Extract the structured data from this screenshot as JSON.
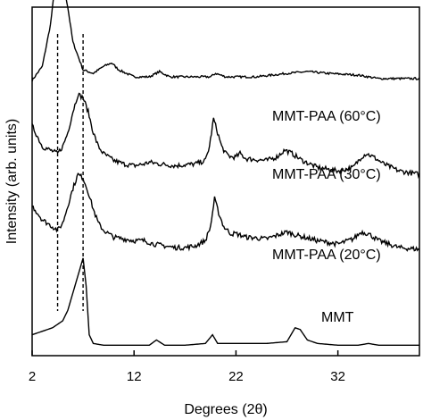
{
  "chart_data": {
    "type": "line",
    "title": "",
    "xlabel": "Degrees (2θ)",
    "ylabel": "Intensity (arb. units)",
    "xlim": [
      2,
      40
    ],
    "x_ticks": [
      2,
      12,
      22,
      32
    ],
    "y_ticks_shown": false,
    "grid": false,
    "legend": "none",
    "line_color": "#000000",
    "reference_lines": [
      {
        "x": 4.5,
        "style": "dashed"
      },
      {
        "x": 7.0,
        "style": "dashed"
      }
    ],
    "series": [
      {
        "name": "MMT-PAA (60°C)",
        "baseline": 0.79,
        "x": [
          2.0,
          3.0,
          3.8,
          4.2,
          4.6,
          5.0,
          5.5,
          6.0,
          7.0,
          8.0,
          9.0,
          9.8,
          10.5,
          12.0,
          13.5,
          14.5,
          15.5,
          17.0,
          18.5,
          19.5,
          20.0,
          21.0,
          24.0,
          27.0,
          29.0,
          31.0,
          34.0,
          36.0,
          40.0
        ],
        "values": [
          0.79,
          0.83,
          0.95,
          1.05,
          1.09,
          1.08,
          1.0,
          0.9,
          0.82,
          0.81,
          0.83,
          0.84,
          0.82,
          0.8,
          0.8,
          0.815,
          0.8,
          0.8,
          0.8,
          0.8,
          0.81,
          0.8,
          0.8,
          0.81,
          0.815,
          0.81,
          0.805,
          0.795,
          0.795
        ],
        "noise": 0.003
      },
      {
        "name": "MMT-PAA (30°C)",
        "baseline": 0.52,
        "x": [
          2.0,
          3.0,
          4.5,
          5.0,
          5.5,
          6.0,
          6.5,
          7.0,
          7.5,
          8.0,
          8.5,
          9.0,
          9.5,
          10.0,
          11.0,
          12.0,
          13.0,
          13.5,
          14.5,
          16.0,
          18.0,
          19.0,
          19.4,
          19.8,
          20.1,
          20.6,
          21.0,
          21.5,
          22.0,
          22.4,
          23.0,
          25.0,
          26.0,
          26.8,
          27.5,
          28.5,
          30.0,
          32.0,
          33.5,
          34.3,
          34.8,
          35.5,
          36.5,
          38.0,
          40.0
        ],
        "values": [
          0.66,
          0.6,
          0.58,
          0.6,
          0.64,
          0.7,
          0.75,
          0.74,
          0.7,
          0.64,
          0.6,
          0.58,
          0.57,
          0.56,
          0.55,
          0.545,
          0.55,
          0.555,
          0.55,
          0.545,
          0.55,
          0.56,
          0.6,
          0.68,
          0.65,
          0.6,
          0.58,
          0.57,
          0.57,
          0.58,
          0.565,
          0.56,
          0.57,
          0.59,
          0.58,
          0.56,
          0.54,
          0.53,
          0.54,
          0.57,
          0.58,
          0.57,
          0.55,
          0.53,
          0.52
        ],
        "noise": 0.007
      },
      {
        "name": "MMT-PAA (20°C)",
        "baseline": 0.3,
        "x": [
          2.0,
          3.0,
          4.5,
          5.0,
          5.5,
          6.0,
          6.5,
          7.0,
          7.5,
          8.0,
          8.5,
          9.0,
          10.0,
          11.0,
          12.0,
          13.0,
          14.0,
          15.0,
          16.0,
          17.0,
          18.0,
          19.0,
          19.5,
          19.9,
          20.3,
          20.8,
          21.5,
          22.0,
          23.0,
          25.0,
          26.5,
          27.0,
          28.0,
          30.0,
          32.0,
          33.5,
          34.3,
          35.0,
          36.0,
          38.0,
          40.0
        ],
        "values": [
          0.43,
          0.39,
          0.36,
          0.38,
          0.43,
          0.48,
          0.52,
          0.51,
          0.47,
          0.42,
          0.38,
          0.36,
          0.34,
          0.335,
          0.33,
          0.33,
          0.32,
          0.315,
          0.31,
          0.31,
          0.315,
          0.33,
          0.37,
          0.45,
          0.41,
          0.37,
          0.35,
          0.35,
          0.34,
          0.335,
          0.35,
          0.355,
          0.345,
          0.33,
          0.32,
          0.335,
          0.355,
          0.35,
          0.33,
          0.31,
          0.305
        ],
        "noise": 0.007
      },
      {
        "name": "MMT",
        "baseline": 0.05,
        "x": [
          2.0,
          3.0,
          4.0,
          5.0,
          5.5,
          6.0,
          6.5,
          7.0,
          7.3,
          7.6,
          8.0,
          9.0,
          10.0,
          12.0,
          13.5,
          14.2,
          15.0,
          17.0,
          19.0,
          19.7,
          20.2,
          21.0,
          23.0,
          25.0,
          27.0,
          27.8,
          28.3,
          29.0,
          30.0,
          32.0,
          34.0,
          35.0,
          36.0,
          38.0,
          40.0
        ],
        "values": [
          0.06,
          0.07,
          0.08,
          0.1,
          0.13,
          0.18,
          0.23,
          0.28,
          0.2,
          0.06,
          0.035,
          0.03,
          0.03,
          0.03,
          0.03,
          0.045,
          0.03,
          0.03,
          0.035,
          0.06,
          0.035,
          0.035,
          0.035,
          0.035,
          0.04,
          0.08,
          0.075,
          0.045,
          0.035,
          0.03,
          0.03,
          0.035,
          0.03,
          0.03,
          0.03
        ],
        "noise": 0.0
      }
    ]
  }
}
